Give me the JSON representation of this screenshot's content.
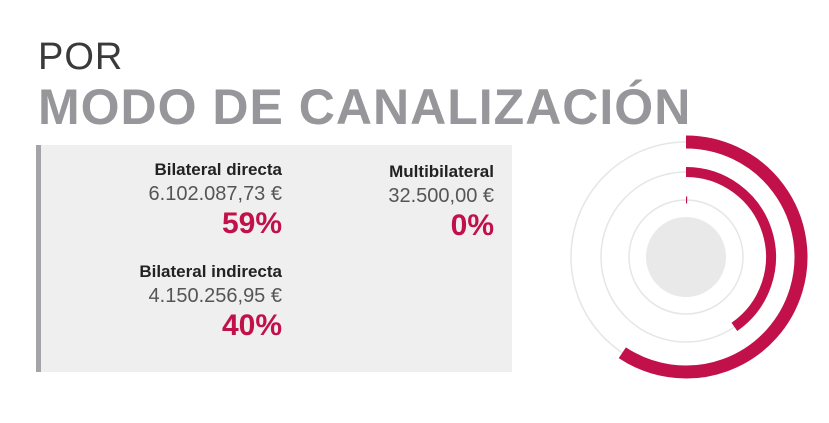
{
  "heading": {
    "line1": "POR",
    "line2": "MODO DE CANALIZACIÓN"
  },
  "colors": {
    "accent": "#c1104a",
    "ring": "#e6e6e6",
    "center": "#e9e9ea",
    "panel": "#efeff0"
  },
  "chart_data": {
    "type": "radial-bar",
    "title": "MODO DE CANALIZACIÓN",
    "categories": [
      "Bilateral directa",
      "Bilateral indirecta",
      "Multibilateral"
    ],
    "amounts": [
      "6.102.087,73 €",
      "4.150.256,95 €",
      "32.500,00 €"
    ],
    "percent_labels": [
      "59%",
      "40%",
      "0%"
    ],
    "values": [
      59.34,
      40.36,
      0.32
    ]
  }
}
